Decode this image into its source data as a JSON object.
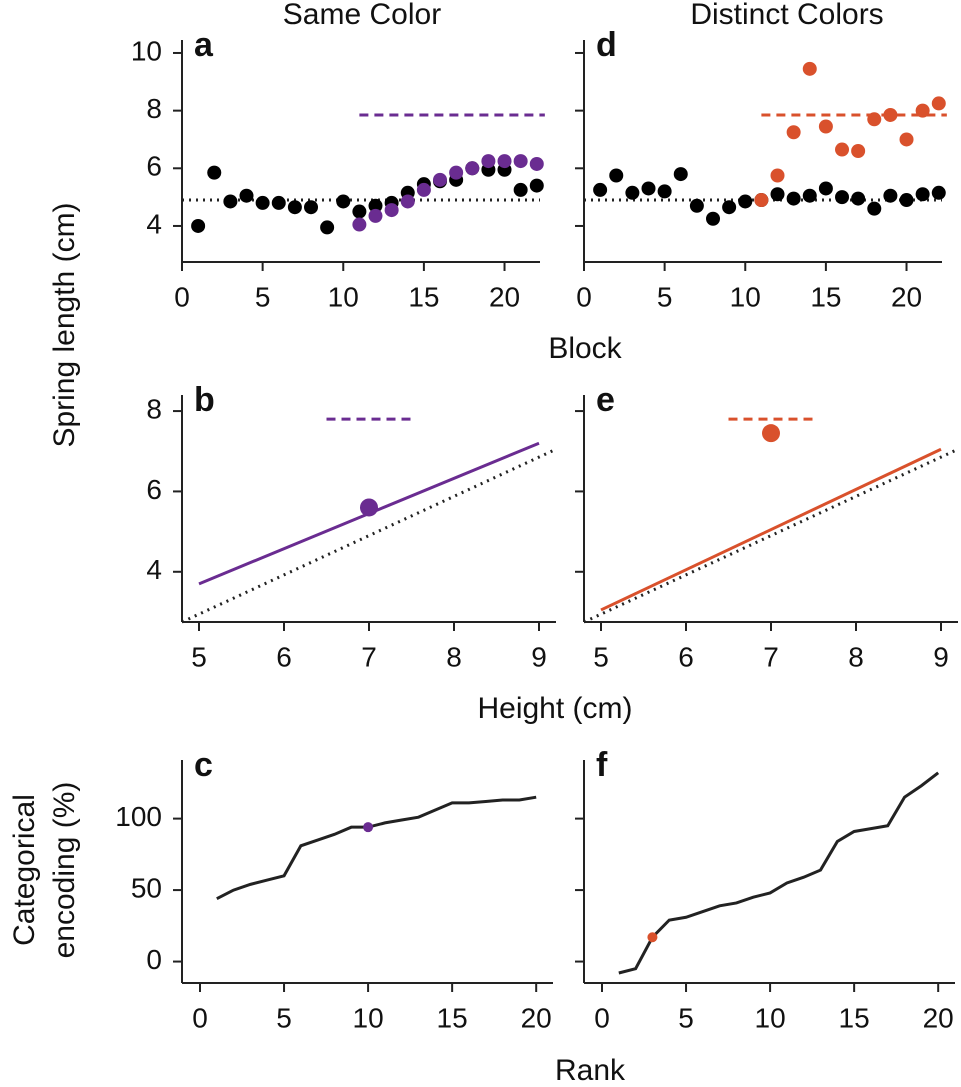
{
  "figure": {
    "titles": [
      "Same Color",
      "Distinct Colors"
    ],
    "ylabel": "Spring length (cm)",
    "xlabels": [
      "Block",
      "Height (cm)",
      "Rank"
    ],
    "ylabel_bottom": [
      "Categorical",
      "encoding (%)"
    ]
  },
  "chart_data": [
    {
      "type": "scatter",
      "panel": "a",
      "xlim": [
        0,
        22.2
      ],
      "ylim": [
        2.75,
        10.45
      ],
      "xticks": [
        0,
        5,
        10,
        15,
        20
      ],
      "yticks": [
        4,
        6,
        8,
        10
      ],
      "show_ytick_labels": true,
      "series": [
        {
          "mark": "line",
          "dash": "dotted",
          "color": "#222222",
          "x": [
            0,
            22.2
          ],
          "values": [
            4.9,
            4.9
          ]
        },
        {
          "mark": "line",
          "dash": "dashed",
          "color": "#6a2c91",
          "x": [
            11,
            22.5
          ],
          "values": [
            7.85,
            7.85
          ]
        },
        {
          "mark": "dot",
          "color": "#000000",
          "x": [
            1,
            2,
            3,
            4,
            5,
            6,
            7,
            8,
            9,
            10,
            11,
            12,
            13,
            14,
            15,
            16,
            17,
            18,
            19,
            20,
            21,
            22
          ],
          "values": [
            4.0,
            5.85,
            4.85,
            5.05,
            4.8,
            4.8,
            4.65,
            4.65,
            3.95,
            4.85,
            4.5,
            4.7,
            4.8,
            5.15,
            5.45,
            5.55,
            5.6,
            6.0,
            5.95,
            5.95,
            5.25,
            5.4
          ]
        },
        {
          "mark": "dot",
          "color": "#6a2c91",
          "x": [
            11,
            12,
            13,
            14,
            15,
            16,
            17,
            18,
            19,
            20,
            21,
            22
          ],
          "values": [
            4.05,
            4.35,
            4.55,
            4.85,
            5.25,
            5.6,
            5.85,
            6.0,
            6.25,
            6.25,
            6.25,
            6.15
          ]
        }
      ]
    },
    {
      "type": "line",
      "panel": "b",
      "xlim": [
        4.8,
        9.2
      ],
      "ylim": [
        2.75,
        8.4
      ],
      "xticks": [
        5,
        6,
        7,
        8,
        9
      ],
      "yticks": [
        4,
        6,
        8
      ],
      "show_ytick_labels": true,
      "series": [
        {
          "mark": "line",
          "dash": "dotted",
          "color": "#222222",
          "x": [
            4.8,
            9.2
          ],
          "values": [
            2.75,
            7.05
          ]
        },
        {
          "mark": "line",
          "dash": "solid",
          "color": "#6a2c91",
          "x": [
            5,
            9
          ],
          "values": [
            3.7,
            7.2
          ]
        },
        {
          "mark": "line",
          "dash": "dashed",
          "color": "#6a2c91",
          "x": [
            6.5,
            7.5
          ],
          "values": [
            7.8,
            7.8
          ]
        },
        {
          "mark": "dot",
          "color": "#6a2c91",
          "x": [
            7
          ],
          "values": [
            5.6
          ]
        }
      ]
    },
    {
      "type": "line",
      "panel": "c",
      "xlim": [
        -1.07,
        21
      ],
      "ylim": [
        -15,
        141
      ],
      "xticks": [
        0,
        5,
        10,
        15,
        20
      ],
      "yticks": [
        0,
        50,
        100
      ],
      "show_ytick_labels": true,
      "series": [
        {
          "mark": "line",
          "dash": "solid",
          "color": "#222222",
          "x": [
            1,
            2,
            3,
            4,
            5,
            6,
            7,
            8,
            9,
            10,
            11,
            12,
            13,
            14,
            15,
            16,
            17,
            18,
            19,
            20
          ],
          "values": [
            44,
            50,
            54,
            57,
            60,
            81,
            85,
            89,
            94,
            94,
            97,
            99,
            101,
            106,
            111,
            111,
            112,
            113,
            113,
            115
          ]
        },
        {
          "mark": "dot",
          "color": "#6a2c91",
          "x": [
            10
          ],
          "values": [
            94
          ]
        }
      ]
    },
    {
      "type": "scatter",
      "panel": "d",
      "xlim": [
        0,
        22.2
      ],
      "ylim": [
        2.75,
        10.45
      ],
      "xticks": [
        0,
        5,
        10,
        15,
        20
      ],
      "yticks": [
        4,
        6,
        8,
        10
      ],
      "show_ytick_labels": false,
      "series": [
        {
          "mark": "line",
          "dash": "dotted",
          "color": "#222222",
          "x": [
            0,
            22.2
          ],
          "values": [
            4.9,
            4.9
          ]
        },
        {
          "mark": "line",
          "dash": "dashed",
          "color": "#d9512c",
          "x": [
            11,
            22.5
          ],
          "values": [
            7.85,
            7.85
          ]
        },
        {
          "mark": "dot",
          "color": "#000000",
          "x": [
            1,
            2,
            3,
            4,
            5,
            6,
            7,
            8,
            9,
            10,
            11,
            12,
            13,
            14,
            15,
            16,
            17,
            18,
            19,
            20,
            21,
            22
          ],
          "values": [
            5.25,
            5.75,
            5.15,
            5.3,
            5.2,
            5.8,
            4.7,
            4.25,
            4.65,
            4.85,
            4.9,
            5.1,
            4.95,
            5.05,
            5.3,
            5.0,
            4.95,
            4.6,
            5.05,
            4.9,
            5.1,
            5.15
          ]
        },
        {
          "mark": "dot",
          "color": "#d9512c",
          "x": [
            11,
            12,
            13,
            14,
            15,
            16,
            17,
            18,
            19,
            20,
            21,
            22
          ],
          "values": [
            4.9,
            5.75,
            7.25,
            9.45,
            7.45,
            6.65,
            6.6,
            7.7,
            7.85,
            7.0,
            8.0,
            8.25
          ]
        }
      ]
    },
    {
      "type": "line",
      "panel": "e",
      "xlim": [
        4.8,
        9.2
      ],
      "ylim": [
        2.75,
        8.4
      ],
      "xticks": [
        5,
        6,
        7,
        8,
        9
      ],
      "yticks": [
        4,
        6,
        8
      ],
      "show_ytick_labels": false,
      "series": [
        {
          "mark": "line",
          "dash": "dotted",
          "color": "#222222",
          "x": [
            4.8,
            9.2
          ],
          "values": [
            2.75,
            7.05
          ]
        },
        {
          "mark": "line",
          "dash": "solid",
          "color": "#d9512c",
          "x": [
            5,
            9
          ],
          "values": [
            3.05,
            7.05
          ]
        },
        {
          "mark": "line",
          "dash": "dashed",
          "color": "#d9512c",
          "x": [
            6.5,
            7.5
          ],
          "values": [
            7.8,
            7.8
          ]
        },
        {
          "mark": "dot",
          "color": "#d9512c",
          "x": [
            7
          ],
          "values": [
            7.45
          ]
        }
      ]
    },
    {
      "type": "line",
      "panel": "f",
      "xlim": [
        -1.07,
        21
      ],
      "ylim": [
        -15,
        141
      ],
      "xticks": [
        0,
        5,
        10,
        15,
        20
      ],
      "yticks": [
        0,
        50,
        100
      ],
      "show_ytick_labels": false,
      "series": [
        {
          "mark": "line",
          "dash": "solid",
          "color": "#222222",
          "x": [
            1,
            2,
            3,
            4,
            5,
            6,
            7,
            8,
            9,
            10,
            11,
            12,
            13,
            14,
            15,
            16,
            17,
            18,
            19,
            20
          ],
          "values": [
            -8,
            -5,
            17,
            29,
            31,
            35,
            39,
            41,
            45,
            48,
            55,
            59,
            64,
            84,
            91,
            93,
            95,
            115,
            123,
            132
          ]
        },
        {
          "mark": "dot",
          "color": "#d9512c",
          "x": [
            3
          ],
          "values": [
            17
          ]
        }
      ]
    }
  ]
}
